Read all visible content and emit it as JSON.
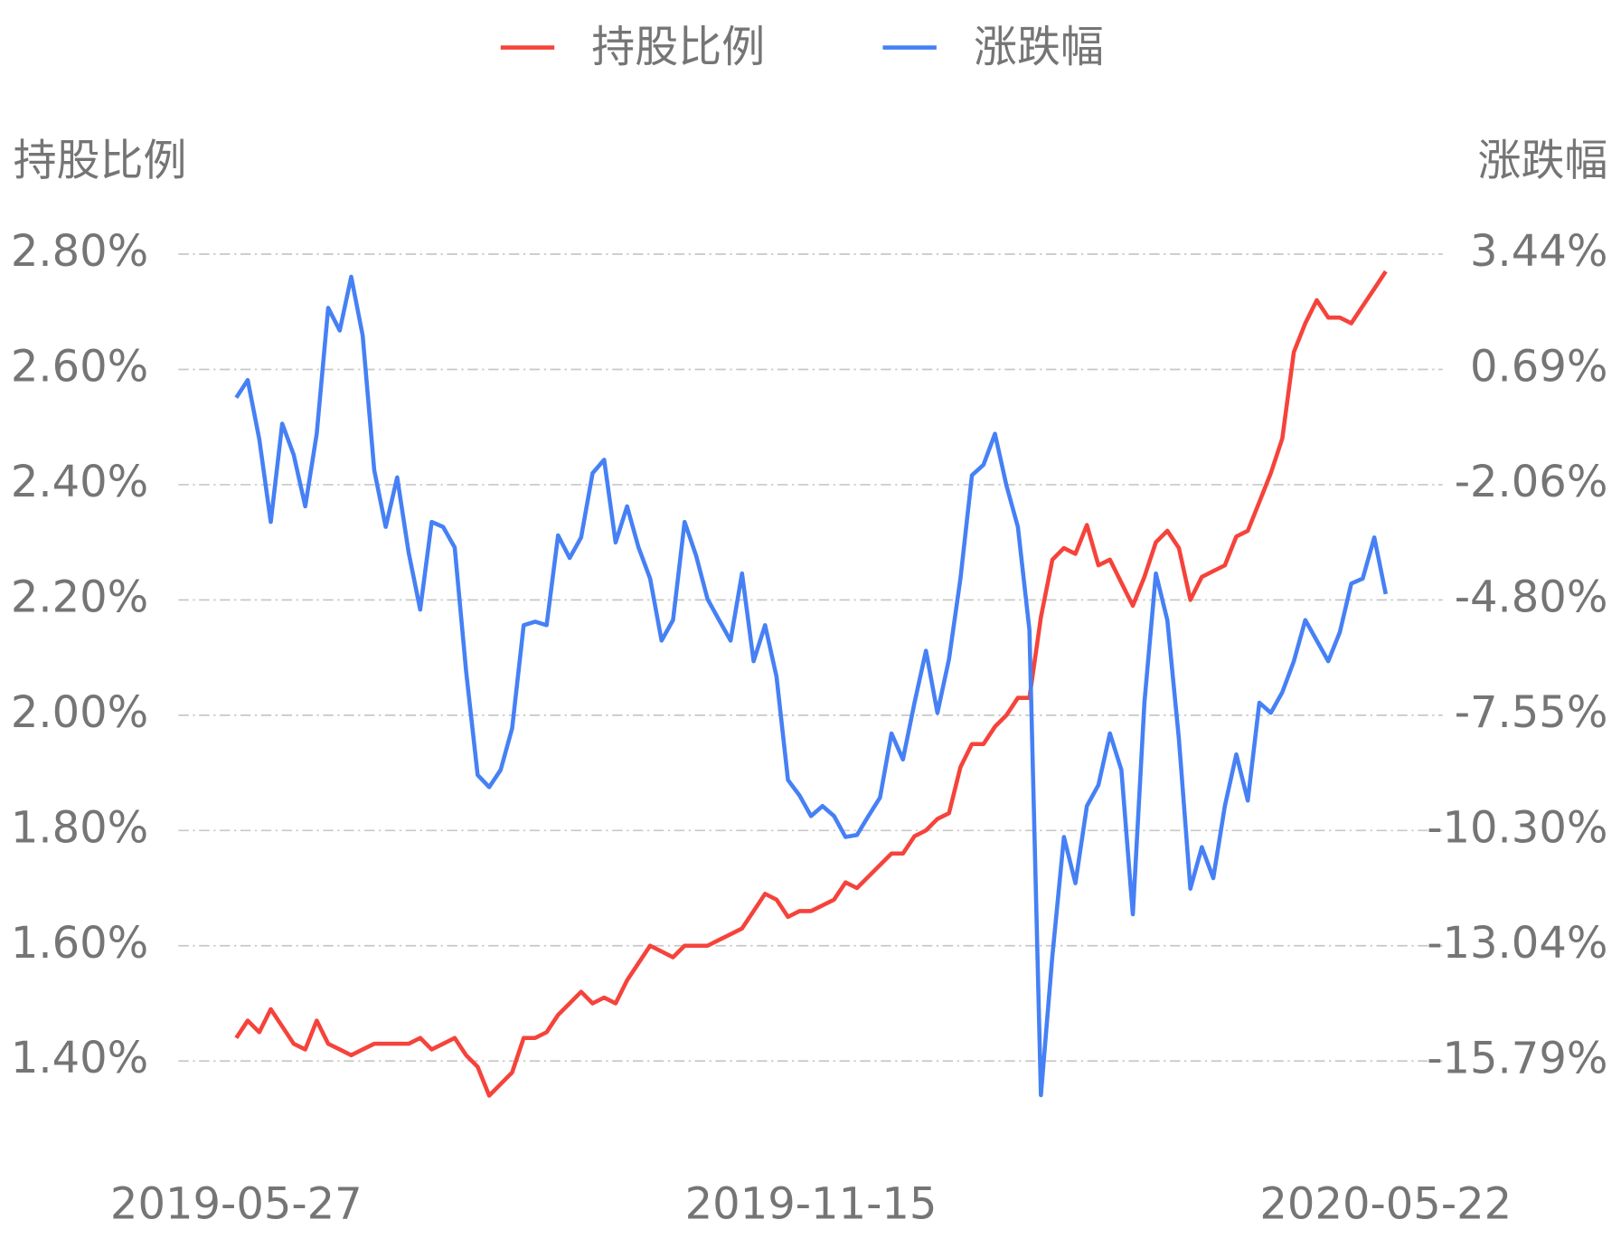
{
  "chart_data": {
    "type": "line",
    "categories": [
      "2019-05-27",
      null,
      null,
      null,
      null,
      null,
      null,
      null,
      null,
      null,
      null,
      null,
      null,
      null,
      null,
      null,
      null,
      null,
      null,
      null,
      null,
      null,
      null,
      null,
      null,
      null,
      null,
      null,
      null,
      null,
      null,
      null,
      null,
      null,
      null,
      null,
      null,
      null,
      null,
      null,
      null,
      null,
      null,
      null,
      null,
      null,
      null,
      null,
      null,
      null,
      "2019-11-15",
      null,
      null,
      null,
      null,
      null,
      null,
      null,
      null,
      null,
      null,
      null,
      null,
      null,
      null,
      null,
      null,
      null,
      null,
      null,
      null,
      null,
      null,
      null,
      null,
      null,
      null,
      null,
      null,
      null,
      null,
      null,
      null,
      null,
      null,
      null,
      null,
      null,
      null,
      null,
      null,
      null,
      null,
      null,
      null,
      null,
      null,
      null,
      null,
      null,
      "2020-05-22"
    ],
    "y_label": "持股比例",
    "y2_label": "涨跌幅",
    "series": [
      {
        "name": "持股比例",
        "color": "#f5433b",
        "values": [
          1.44,
          1.47,
          1.45,
          1.49,
          1.46,
          1.43,
          1.42,
          1.47,
          1.43,
          1.42,
          1.41,
          1.42,
          1.43,
          1.43,
          1.43,
          1.43,
          1.44,
          1.42,
          1.43,
          1.44,
          1.41,
          1.39,
          1.34,
          1.36,
          1.38,
          1.44,
          1.44,
          1.45,
          1.48,
          1.5,
          1.52,
          1.5,
          1.51,
          1.5,
          1.54,
          1.57,
          1.6,
          1.59,
          1.58,
          1.6,
          1.6,
          1.6,
          1.61,
          1.62,
          1.63,
          1.66,
          1.69,
          1.68,
          1.65,
          1.66,
          1.66,
          1.67,
          1.68,
          1.71,
          1.7,
          1.72,
          1.74,
          1.76,
          1.76,
          1.79,
          1.8,
          1.82,
          1.83,
          1.91,
          1.95,
          1.95,
          1.98,
          2.0,
          2.03,
          2.03,
          2.17,
          2.27,
          2.29,
          2.28,
          2.33,
          2.26,
          2.27,
          2.23,
          2.19,
          2.24,
          2.3,
          2.32,
          2.29,
          2.2,
          2.24,
          2.25,
          2.26,
          2.31,
          2.32,
          2.37,
          2.42,
          2.48,
          2.63,
          2.68,
          2.72,
          2.69,
          2.69,
          2.68,
          2.71,
          2.74,
          2.77
        ]
      },
      {
        "name": "涨跌幅",
        "color": "#4680f5",
        "axis": "y2",
        "values": [
          0.02,
          0.44,
          -0.97,
          -2.94,
          -0.6,
          -1.34,
          -2.57,
          -0.84,
          2.16,
          1.62,
          2.9,
          1.5,
          -1.71,
          -3.06,
          -1.88,
          -3.67,
          -5.03,
          -2.94,
          -3.06,
          -3.55,
          -6.51,
          -8.97,
          -9.26,
          -8.85,
          -7.86,
          -5.4,
          -5.32,
          -5.4,
          -3.26,
          -3.8,
          -3.31,
          -1.78,
          -1.46,
          -3.43,
          -2.57,
          -3.55,
          -4.29,
          -5.77,
          -5.28,
          -2.94,
          -3.74,
          -4.78,
          -5.28,
          -5.77,
          -4.17,
          -6.26,
          -5.4,
          -6.63,
          -9.09,
          -9.46,
          -9.95,
          -9.71,
          -9.95,
          -10.45,
          -10.4,
          -9.95,
          -9.51,
          -7.98,
          -8.6,
          -7.25,
          -6.01,
          -7.49,
          -6.21,
          -4.29,
          -1.83,
          -1.58,
          -0.84,
          -2.07,
          -3.06,
          -5.52,
          -16.6,
          -13.28,
          -10.45,
          -11.55,
          -9.71,
          -9.21,
          -7.98,
          -8.85,
          -12.29,
          -7.25,
          -4.17,
          -5.28,
          -8.11,
          -11.68,
          -10.69,
          -11.43,
          -9.71,
          -8.48,
          -9.58,
          -7.25,
          -7.49,
          -7.0,
          -6.26,
          -5.28,
          -5.77,
          -6.26,
          -5.57,
          -4.41,
          -4.29,
          -3.31,
          -4.66
        ]
      }
    ],
    "ylim": [
      1.3,
      2.8
    ],
    "yticks": [
      {
        "value": 1.4,
        "label": "1.40%"
      },
      {
        "value": 1.6,
        "label": "1.60%"
      },
      {
        "value": 1.8,
        "label": "1.80%"
      },
      {
        "value": 2.0,
        "label": "2.00%"
      },
      {
        "value": 2.2,
        "label": "2.20%"
      },
      {
        "value": 2.4,
        "label": "2.40%"
      },
      {
        "value": 2.6,
        "label": "2.60%"
      },
      {
        "value": 2.8,
        "label": "2.80%"
      }
    ],
    "y2lim": [
      -17.16,
      3.44
    ],
    "y2ticks": [
      {
        "value": -15.79,
        "label": "-15.79%"
      },
      {
        "value": -13.04,
        "label": "-13.04%"
      },
      {
        "value": -10.3,
        "label": "-10.30%"
      },
      {
        "value": -7.55,
        "label": "-7.55%"
      },
      {
        "value": -4.8,
        "label": "-4.80%"
      },
      {
        "value": -2.06,
        "label": "-2.06%"
      },
      {
        "value": 0.69,
        "label": "0.69%"
      },
      {
        "value": 3.44,
        "label": "3.44%"
      }
    ],
    "grid": true,
    "legend": "top"
  }
}
